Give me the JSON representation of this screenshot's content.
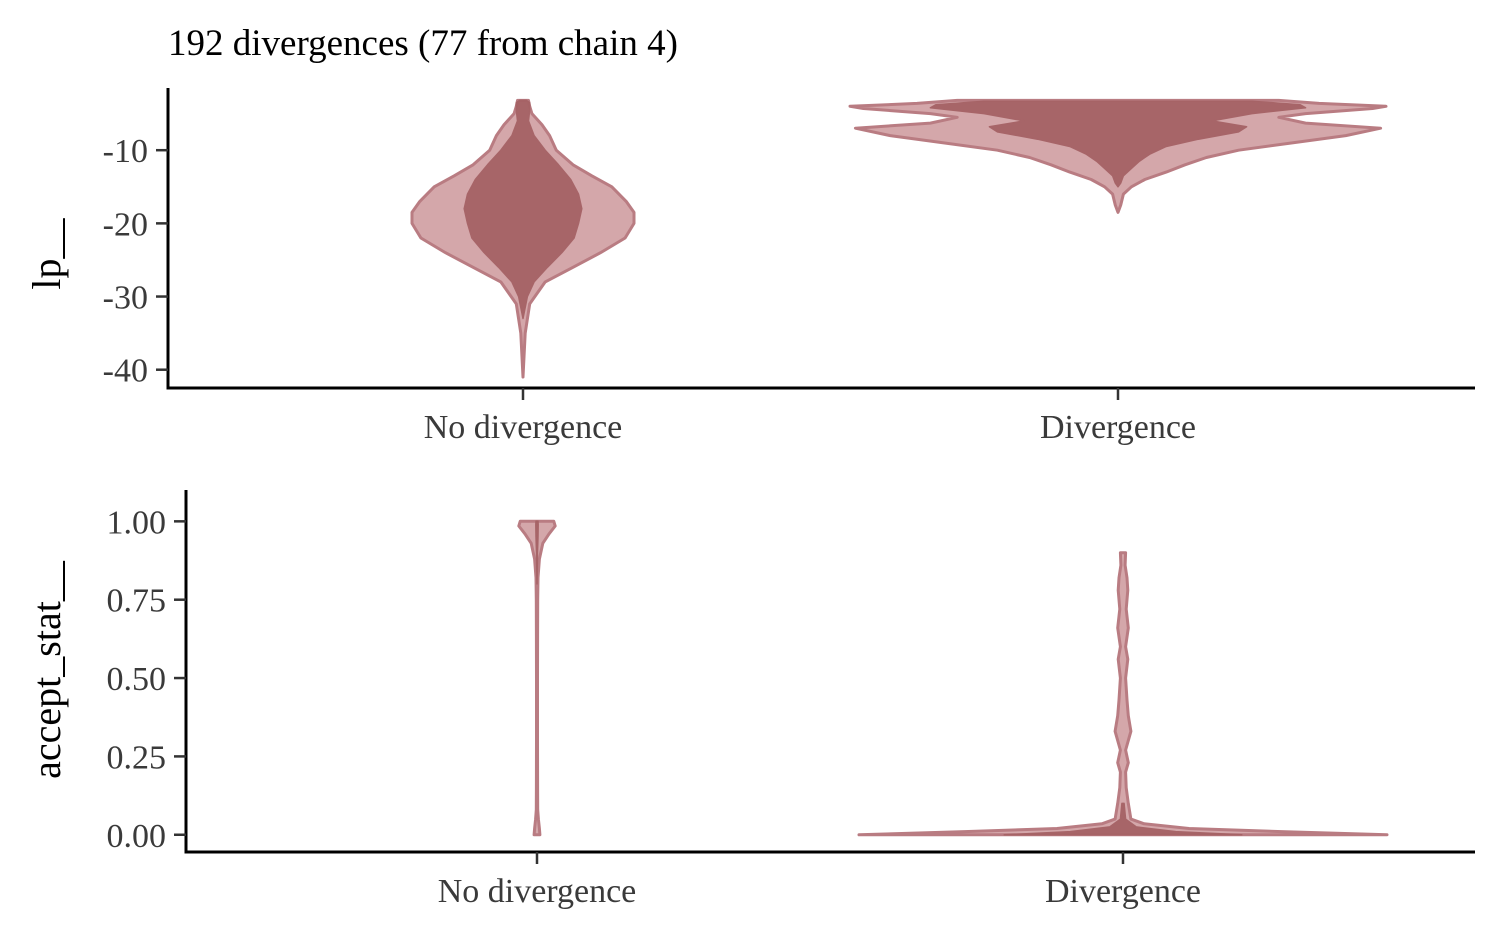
{
  "colors": {
    "outer_fill": "#d4a7aa",
    "outer_stroke": "#b97c82",
    "inner_fill": "#a56265",
    "inner_stroke": "#a56265",
    "axis": "#000000",
    "tick_text": "#3a3a3a"
  },
  "chart_data": {
    "title": "192 divergences (77 from chain 4)",
    "panels": [
      {
        "type": "violin",
        "ylabel": "lp__",
        "categories": [
          "No divergence",
          "Divergence"
        ],
        "ylim": [
          -42.5,
          -1.5
        ],
        "yticks": [
          -40,
          -30,
          -20,
          -10
        ],
        "ytick_labels": [
          "-40",
          "-30",
          "-20",
          "-10"
        ],
        "violins": [
          {
            "category": "No divergence",
            "outer": [
              [
                -41,
                0.0
              ],
              [
                -35,
                0.02
              ],
              [
                -31,
                0.06
              ],
              [
                -28,
                0.2
              ],
              [
                -26,
                0.45
              ],
              [
                -24,
                0.7
              ],
              [
                -22,
                0.92
              ],
              [
                -20,
                1.0
              ],
              [
                -18.5,
                1.0
              ],
              [
                -17,
                0.93
              ],
              [
                -15,
                0.8
              ],
              [
                -13.5,
                0.62
              ],
              [
                -12,
                0.45
              ],
              [
                -10,
                0.3
              ],
              [
                -8,
                0.24
              ],
              [
                -6.5,
                0.17
              ],
              [
                -5,
                0.08
              ],
              [
                -4,
                0.06
              ],
              [
                -3.2,
                0.05
              ]
            ],
            "inner": [
              [
                -33,
                0.0
              ],
              [
                -30,
                0.04
              ],
              [
                -28,
                0.1
              ],
              [
                -26,
                0.22
              ],
              [
                -24,
                0.35
              ],
              [
                -22,
                0.46
              ],
              [
                -20,
                0.5
              ],
              [
                -18,
                0.53
              ],
              [
                -16,
                0.5
              ],
              [
                -14,
                0.43
              ],
              [
                -12,
                0.32
              ],
              [
                -10,
                0.2
              ],
              [
                -8,
                0.1
              ],
              [
                -6,
                0.05
              ],
              [
                -4.5,
                0.06
              ],
              [
                -3.5,
                0.06
              ],
              [
                -3.2,
                0.03
              ]
            ]
          },
          {
            "category": "Divergence",
            "outer": [
              [
                -18.5,
                0.0
              ],
              [
                -17.5,
                0.01
              ],
              [
                -16,
                0.02
              ],
              [
                -15,
                0.05
              ],
              [
                -14,
                0.1
              ],
              [
                -13,
                0.18
              ],
              [
                -12,
                0.25
              ],
              [
                -11,
                0.33
              ],
              [
                -10,
                0.45
              ],
              [
                -9,
                0.65
              ],
              [
                -8,
                0.85
              ],
              [
                -7,
                0.98
              ],
              [
                -6.3,
                0.7
              ],
              [
                -5.5,
                0.6
              ],
              [
                -5,
                0.7
              ],
              [
                -4.3,
                0.95
              ],
              [
                -4,
                1.0
              ],
              [
                -3.6,
                0.75
              ],
              [
                -3.2,
                0.6
              ]
            ],
            "inner": [
              [
                -15,
                0.0
              ],
              [
                -14.5,
                0.01
              ],
              [
                -13.5,
                0.02
              ],
              [
                -12.5,
                0.05
              ],
              [
                -11.5,
                0.08
              ],
              [
                -10.5,
                0.12
              ],
              [
                -9.5,
                0.18
              ],
              [
                -8.5,
                0.3
              ],
              [
                -7.5,
                0.45
              ],
              [
                -6.8,
                0.48
              ],
              [
                -6,
                0.35
              ],
              [
                -5,
                0.5
              ],
              [
                -4.2,
                0.7
              ],
              [
                -3.8,
                0.68
              ],
              [
                -3.3,
                0.5
              ]
            ]
          }
        ]
      },
      {
        "type": "violin",
        "ylabel": "accept_stat__",
        "categories": [
          "No divergence",
          "Divergence"
        ],
        "ylim": [
          -0.055,
          1.1
        ],
        "yticks": [
          0,
          0.25,
          0.5,
          0.75,
          1.0
        ],
        "ytick_labels": [
          "0.00",
          "0.25",
          "0.50",
          "0.75",
          "1.00"
        ],
        "violins": [
          {
            "category": "No divergence",
            "outer": [
              [
                0.0,
                0.06
              ],
              [
                0.02,
                0.05
              ],
              [
                0.05,
                0.03
              ],
              [
                0.08,
                0.015
              ],
              [
                0.15,
                0.012
              ],
              [
                0.3,
                0.01
              ],
              [
                0.5,
                0.011
              ],
              [
                0.65,
                0.012
              ],
              [
                0.75,
                0.015
              ],
              [
                0.82,
                0.02
              ],
              [
                0.88,
                0.05
              ],
              [
                0.93,
                0.12
              ],
              [
                0.96,
                0.25
              ],
              [
                0.985,
                0.38
              ],
              [
                1.0,
                0.35
              ]
            ],
            "inner": [
              [
                0.8,
                0.0
              ],
              [
                0.85,
                0.005
              ],
              [
                0.9,
                0.01
              ],
              [
                0.95,
                0.02
              ],
              [
                0.99,
                0.025
              ],
              [
                1.0,
                0.02
              ]
            ]
          },
          {
            "category": "Divergence",
            "outer": [
              [
                0.0,
                1.0
              ],
              [
                0.01,
                0.6
              ],
              [
                0.02,
                0.25
              ],
              [
                0.035,
                0.08
              ],
              [
                0.05,
                0.03
              ],
              [
                0.1,
                0.02
              ],
              [
                0.15,
                0.012
              ],
              [
                0.2,
                0.01
              ],
              [
                0.23,
                0.02
              ],
              [
                0.27,
                0.01
              ],
              [
                0.33,
                0.03
              ],
              [
                0.38,
                0.02
              ],
              [
                0.43,
                0.015
              ],
              [
                0.5,
                0.01
              ],
              [
                0.56,
                0.018
              ],
              [
                0.6,
                0.01
              ],
              [
                0.66,
                0.02
              ],
              [
                0.72,
                0.012
              ],
              [
                0.78,
                0.018
              ],
              [
                0.82,
                0.015
              ],
              [
                0.86,
                0.008
              ],
              [
                0.9,
                0.01
              ]
            ],
            "inner": [
              [
                0.0,
                0.45
              ],
              [
                0.01,
                0.2
              ],
              [
                0.025,
                0.05
              ],
              [
                0.05,
                0.01
              ],
              [
                0.1,
                0.004
              ]
            ]
          }
        ]
      }
    ]
  }
}
